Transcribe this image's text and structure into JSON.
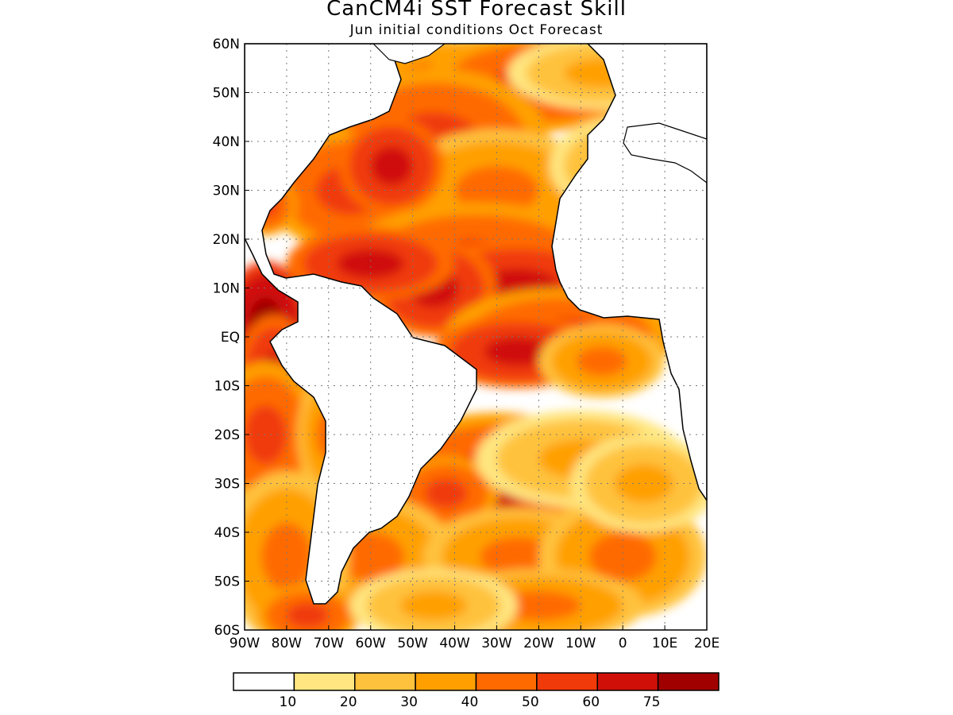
{
  "title": "CanCM4i SST Forecast Skill",
  "subtitle": "Jun initial conditions  Oct Forecast",
  "map": {
    "region": "Atlantic Ocean",
    "lon_range": [
      -90,
      20
    ],
    "lat_range": [
      -60,
      60
    ],
    "lat_ticks": [
      "60N",
      "50N",
      "40N",
      "30N",
      "20N",
      "10N",
      "EQ",
      "10S",
      "20S",
      "30S",
      "40S",
      "50S",
      "60S"
    ],
    "lon_ticks": [
      "90W",
      "80W",
      "70W",
      "60W",
      "50W",
      "40W",
      "30W",
      "20W",
      "10W",
      "0",
      "10E",
      "20E"
    ],
    "grid": "dotted",
    "land_fill": "#ffffff",
    "coastline_color": "#000000"
  },
  "colorbar": {
    "labels": [
      "10",
      "20",
      "30",
      "40",
      "50",
      "60",
      "75"
    ],
    "colors": [
      "#ffffff",
      "#ffe680",
      "#ffc23c",
      "#ffa000",
      "#ff6a00",
      "#f03a0a",
      "#d01008",
      "#a00000"
    ]
  }
}
